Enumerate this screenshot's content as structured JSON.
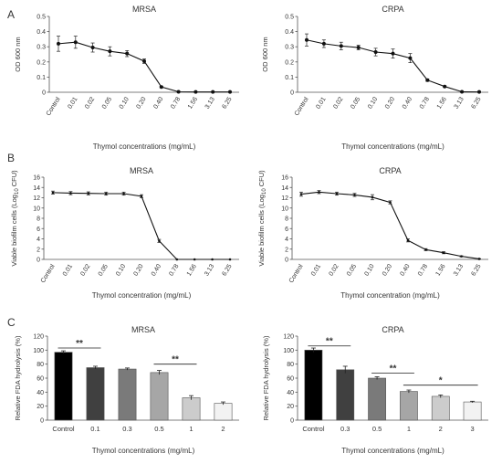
{
  "panel_letters": [
    "A",
    "B",
    "C"
  ],
  "chart_data": [
    {
      "id": "A-MRSA",
      "panel": "A",
      "type": "line",
      "title": "MRSA",
      "xlabel": "Thymol concentrations (mg/mL)",
      "ylabel": "OD 600 nm",
      "categories": [
        "Control",
        "0.01",
        "0.02",
        "0.05",
        "0.10",
        "0.20",
        "0.40",
        "0.78",
        "1.56",
        "3.13",
        "6.25"
      ],
      "values": [
        0.32,
        0.33,
        0.295,
        0.27,
        0.255,
        0.205,
        0.035,
        0.003,
        0.002,
        0.002,
        0.002
      ],
      "errors": [
        0.05,
        0.04,
        0.03,
        0.03,
        0.02,
        0.015,
        0.005,
        0.002,
        0.002,
        0.002,
        0.002
      ],
      "ylim": [
        0,
        0.5
      ],
      "yticks": [
        "0",
        "0.1",
        "0.2",
        "0.3",
        "0.4",
        "0.5"
      ],
      "yformat": "dec1",
      "grid": false
    },
    {
      "id": "A-CRPA",
      "panel": "A",
      "type": "line",
      "title": "CRPA",
      "xlabel": "Thymol concentrations (mg/mL)",
      "ylabel": "OD 600 nm",
      "categories": [
        "Control",
        "0.01",
        "0.02",
        "0.05",
        "0.10",
        "0.20",
        "0.40",
        "0.78",
        "1.56",
        "3.13",
        "6.25"
      ],
      "values": [
        0.345,
        0.32,
        0.305,
        0.295,
        0.265,
        0.255,
        0.225,
        0.08,
        0.038,
        0.003,
        0.002
      ],
      "errors": [
        0.04,
        0.025,
        0.025,
        0.015,
        0.025,
        0.03,
        0.03,
        0.008,
        0.005,
        0.002,
        0.002
      ],
      "ylim": [
        0,
        0.5
      ],
      "yticks": [
        "0",
        "0.1",
        "0.2",
        "0.3",
        "0.4",
        "0.5"
      ],
      "yformat": "dec1",
      "grid": false
    },
    {
      "id": "B-MRSA",
      "panel": "B",
      "type": "line",
      "title": "MRSA",
      "xlabel": "Thymol concentration (mg/mL)",
      "ylabel": "Viable biofilm cells (Log₁₀ CFU)",
      "categories": [
        "Control",
        "0.01",
        "0.02",
        "0.05",
        "0.10",
        "0.20",
        "0.40",
        "0.78",
        "1.56",
        "3.13",
        "6.25"
      ],
      "values": [
        13.0,
        12.9,
        12.85,
        12.8,
        12.8,
        12.3,
        3.6,
        0,
        0,
        0,
        0
      ],
      "errors": [
        0.3,
        0.3,
        0.3,
        0.3,
        0.3,
        0.3,
        0.3,
        0,
        0,
        0,
        0
      ],
      "ylim": [
        0,
        16
      ],
      "yticks": [
        "0",
        "2",
        "4",
        "6",
        "8",
        "10",
        "12",
        "14",
        "16"
      ],
      "grid": false
    },
    {
      "id": "B-CRPA",
      "panel": "B",
      "type": "line",
      "title": "CRPA",
      "xlabel": "Thymol concentration (mg/mL)",
      "ylabel": "Viable biofilm cells (Log₁₀ CFU)",
      "categories": [
        "Control",
        "0.01",
        "0.02",
        "0.05",
        "0.10",
        "0.20",
        "0.40",
        "0.78",
        "1.56",
        "3.13",
        "6.25"
      ],
      "values": [
        12.7,
        13.1,
        12.8,
        12.55,
        12.1,
        11.1,
        3.7,
        1.9,
        1.3,
        0.6,
        0.1
      ],
      "errors": [
        0.4,
        0.3,
        0.3,
        0.3,
        0.5,
        0.3,
        0.3,
        0.2,
        0.2,
        0.1,
        0.05
      ],
      "ylim": [
        0,
        16
      ],
      "yticks": [
        "0",
        "2",
        "4",
        "6",
        "8",
        "10",
        "12",
        "14",
        "16"
      ],
      "grid": false
    },
    {
      "id": "C-MRSA",
      "panel": "C",
      "type": "bar",
      "title": "MRSA",
      "xlabel": "Thymol concentrations (mg/mL)",
      "ylabel": "Relative FDA hydrolysis (%)",
      "categories": [
        "Control",
        "0.1",
        "0.3",
        "0.5",
        "1",
        "2"
      ],
      "values": [
        97,
        75,
        73,
        68,
        32,
        24
      ],
      "errors": [
        2,
        2,
        1.5,
        3,
        3,
        2
      ],
      "colors": [
        "#000000",
        "#404040",
        "#7a7a7a",
        "#a6a6a6",
        "#cccccc",
        "#f2f2f2"
      ],
      "ylim": [
        0,
        120
      ],
      "yticks": [
        "0",
        "20",
        "40",
        "60",
        "80",
        "100",
        "120"
      ],
      "significance": [
        {
          "from": 0,
          "to": 1,
          "y": 103,
          "label": "**"
        },
        {
          "from": 3,
          "to": 4,
          "y": 80,
          "label": "**"
        }
      ],
      "grid": false
    },
    {
      "id": "C-CRPA",
      "panel": "C",
      "type": "bar",
      "title": "CRPA",
      "xlabel": "Thymol concentrations (mg/mL)",
      "ylabel": "Relative FDA hydrolysis (%)",
      "categories": [
        "Control",
        "0.3",
        "0.5",
        "1",
        "2",
        "3"
      ],
      "values": [
        100,
        72,
        60,
        41,
        34,
        26
      ],
      "errors": [
        3,
        5,
        2,
        2,
        2,
        1
      ],
      "colors": [
        "#000000",
        "#404040",
        "#7a7a7a",
        "#a6a6a6",
        "#cccccc",
        "#f2f2f2"
      ],
      "ylim": [
        0,
        120
      ],
      "yticks": [
        "0",
        "20",
        "40",
        "60",
        "80",
        "100",
        "120"
      ],
      "significance": [
        {
          "from": 0,
          "to": 1,
          "y": 106,
          "label": "**"
        },
        {
          "from": 2,
          "to": 3,
          "y": 67,
          "label": "**"
        },
        {
          "from": 3,
          "to": 5,
          "y": 50,
          "label": "*"
        }
      ],
      "grid": false
    }
  ]
}
